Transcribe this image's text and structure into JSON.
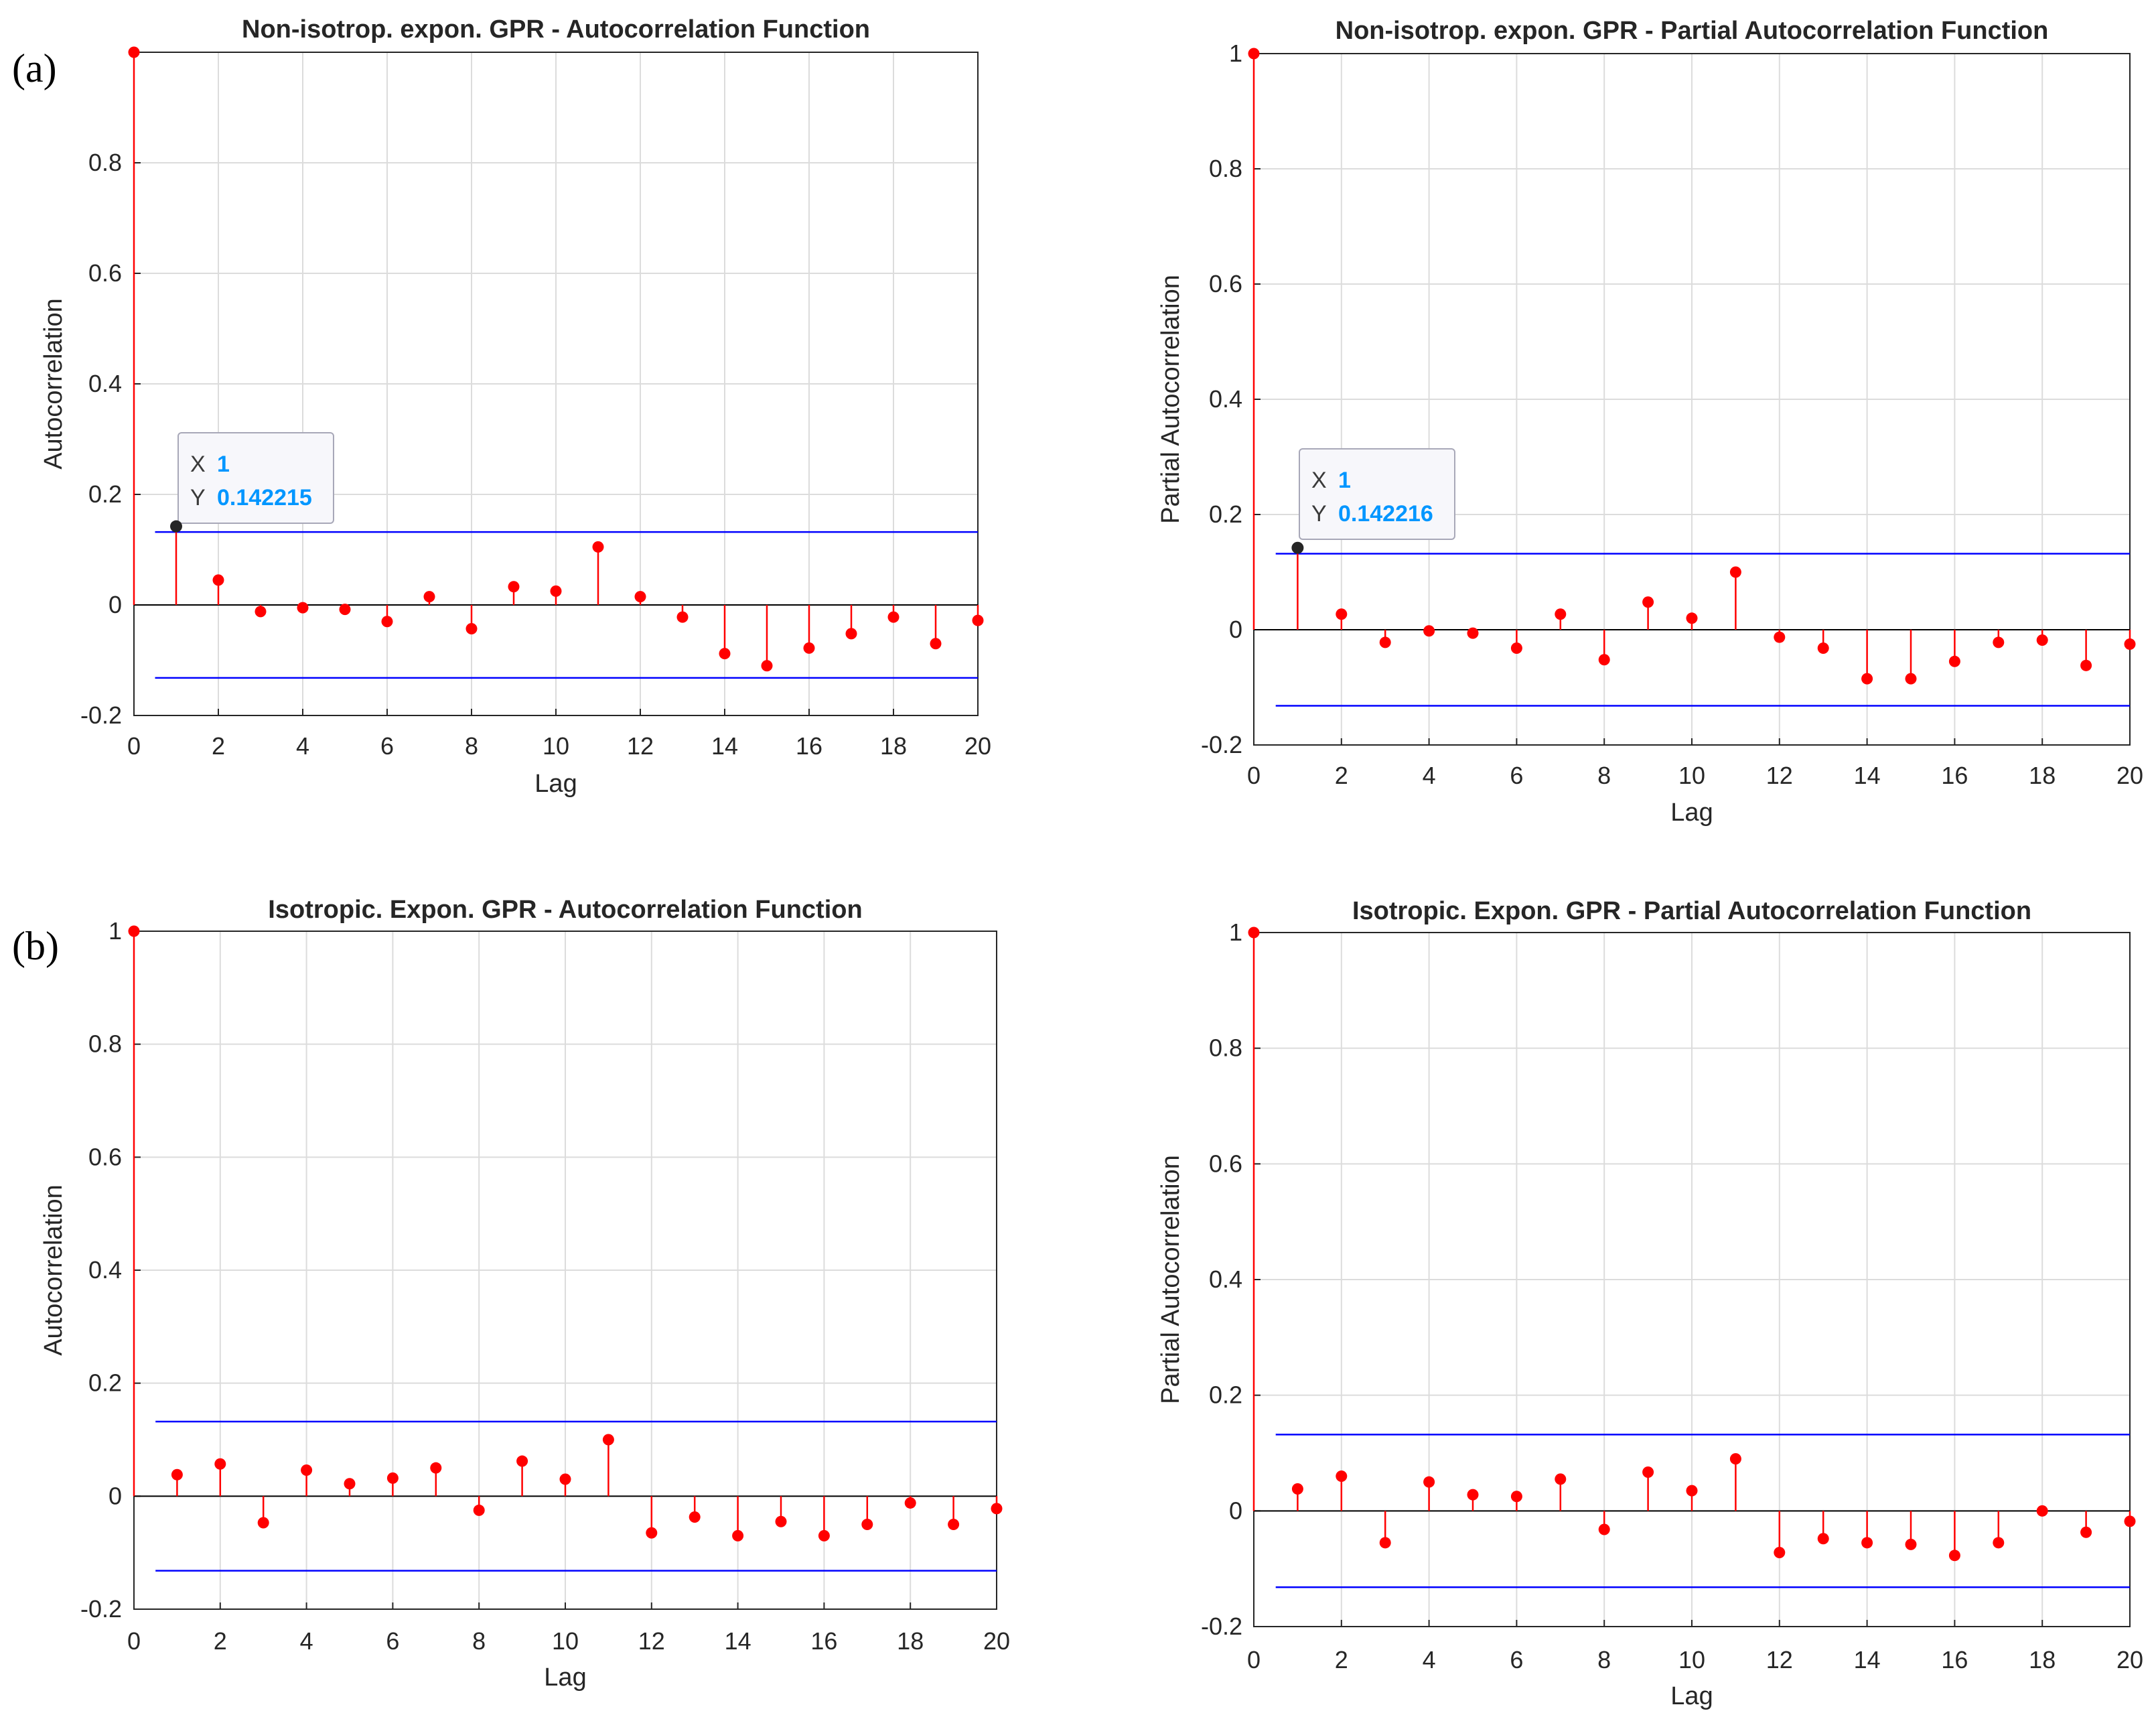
{
  "panel_labels": [
    "(a)",
    "(b)"
  ],
  "colors": {
    "stem": "#ff0000",
    "bounds": "#0000ff",
    "zero_line": "#000000",
    "grid": "#dcdcdc",
    "axes": "#262626",
    "datatip_value": "#0096ff",
    "datatip_marker": "#262626"
  },
  "chart_data": [
    {
      "type": "stem",
      "title": "Non-isotrop. expon. GPR - Autocorrelation Function",
      "xlabel": "Lag",
      "ylabel": "Autocorrelation",
      "xlim": [
        0,
        20
      ],
      "ylim": [
        -0.2,
        1
      ],
      "xticks": [
        "0",
        "2",
        "4",
        "6",
        "8",
        "10",
        "12",
        "14",
        "16",
        "18",
        "20"
      ],
      "yticks": [
        "-0.2",
        "0",
        "0.2",
        "0.4",
        "0.6",
        "0.8"
      ],
      "grid": true,
      "x": [
        0,
        1,
        2,
        3,
        4,
        5,
        6,
        7,
        8,
        9,
        10,
        11,
        12,
        13,
        14,
        15,
        16,
        17,
        18,
        19,
        20
      ],
      "y": [
        1,
        0.142215,
        0.045,
        -0.012,
        -0.005,
        -0.008,
        -0.03,
        0.015,
        -0.043,
        0.033,
        0.025,
        0.105,
        0.015,
        -0.022,
        -0.088,
        -0.11,
        -0.078,
        -0.052,
        -0.022,
        -0.07,
        -0.028
      ],
      "bounds": [
        0.132,
        -0.132
      ],
      "datatip": {
        "x_label": "X",
        "x_value": "1",
        "y_label": "Y",
        "y_value": "0.142215",
        "point_x": 1,
        "point_y": 0.142215
      }
    },
    {
      "type": "stem",
      "title": "Non-isotrop. expon. GPR - Partial Autocorrelation Function",
      "xlabel": "Lag",
      "ylabel": "Partial Autocorrelation",
      "xlim": [
        0,
        20
      ],
      "ylim": [
        -0.2,
        1
      ],
      "xticks": [
        "0",
        "2",
        "4",
        "6",
        "8",
        "10",
        "12",
        "14",
        "16",
        "18",
        "20"
      ],
      "yticks": [
        "-0.2",
        "0",
        "0.2",
        "0.4",
        "0.6",
        "0.8",
        "1"
      ],
      "grid": true,
      "x": [
        0,
        1,
        2,
        3,
        4,
        5,
        6,
        7,
        8,
        9,
        10,
        11,
        12,
        13,
        14,
        15,
        16,
        17,
        18,
        19,
        20
      ],
      "y": [
        1,
        0.142216,
        0.027,
        -0.022,
        -0.002,
        -0.006,
        -0.032,
        0.027,
        -0.052,
        0.048,
        0.02,
        0.1,
        -0.013,
        -0.032,
        -0.085,
        -0.085,
        -0.055,
        -0.022,
        -0.018,
        -0.062,
        -0.025
      ],
      "bounds": [
        0.132,
        -0.132
      ],
      "datatip": {
        "x_label": "X",
        "x_value": "1",
        "y_label": "Y",
        "y_value": "0.142216",
        "point_x": 1,
        "point_y": 0.142216
      }
    },
    {
      "type": "stem",
      "title": "Isotropic. Expon. GPR - Autocorrelation Function",
      "xlabel": "Lag",
      "ylabel": "Autocorrelation",
      "xlim": [
        0,
        20
      ],
      "ylim": [
        -0.2,
        1
      ],
      "xticks": [
        "0",
        "2",
        "4",
        "6",
        "8",
        "10",
        "12",
        "14",
        "16",
        "18",
        "20"
      ],
      "yticks": [
        "-0.2",
        "0",
        "0.2",
        "0.4",
        "0.6",
        "0.8",
        "1"
      ],
      "grid": true,
      "x": [
        0,
        1,
        2,
        3,
        4,
        5,
        6,
        7,
        8,
        9,
        10,
        11,
        12,
        13,
        14,
        15,
        16,
        17,
        18,
        19,
        20
      ],
      "y": [
        1,
        0.038,
        0.057,
        -0.047,
        0.046,
        0.022,
        0.032,
        0.05,
        -0.025,
        0.062,
        0.03,
        0.1,
        -0.065,
        -0.037,
        -0.07,
        -0.045,
        -0.07,
        -0.05,
        -0.012,
        -0.05,
        -0.022
      ],
      "bounds": [
        0.132,
        -0.132
      ]
    },
    {
      "type": "stem",
      "title": "Isotropic. Expon. GPR - Partial Autocorrelation Function",
      "xlabel": "Lag",
      "ylabel": "Partial Autocorrelation",
      "xlim": [
        0,
        20
      ],
      "ylim": [
        -0.2,
        1
      ],
      "xticks": [
        "0",
        "2",
        "4",
        "6",
        "8",
        "10",
        "12",
        "14",
        "16",
        "18",
        "20"
      ],
      "yticks": [
        "-0.2",
        "0",
        "0.2",
        "0.4",
        "0.6",
        "0.8",
        "1"
      ],
      "grid": true,
      "x": [
        0,
        1,
        2,
        3,
        4,
        5,
        6,
        7,
        8,
        9,
        10,
        11,
        12,
        13,
        14,
        15,
        16,
        17,
        18,
        19,
        20
      ],
      "y": [
        1,
        0.038,
        0.06,
        -0.055,
        0.05,
        0.028,
        0.025,
        0.055,
        -0.032,
        0.067,
        0.035,
        0.09,
        -0.072,
        -0.048,
        -0.055,
        -0.058,
        -0.077,
        -0.055,
        0.0,
        -0.037,
        -0.018
      ],
      "bounds": [
        0.132,
        -0.132
      ]
    }
  ]
}
